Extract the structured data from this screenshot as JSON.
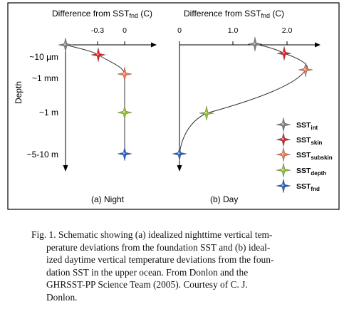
{
  "figure": {
    "depth_label": "Depth",
    "depth_ticks": [
      "~10 µm",
      "~1 mm",
      "~1 m",
      "~5-10 m"
    ],
    "night": {
      "axis_title": {
        "main": "Difference from SST",
        "sub": "fnd",
        "unit": " (C)"
      },
      "x_ticks": [
        "-0.3",
        "0"
      ],
      "panel_label": "(a) Night"
    },
    "day": {
      "axis_title": {
        "main": "Difference from SST",
        "sub": "fnd",
        "unit": " (C)"
      },
      "x_ticks": [
        "0",
        "1.0",
        "2.0"
      ],
      "panel_label": "(b) Day"
    },
    "legend": [
      {
        "main": "SST",
        "sub": "int",
        "color": "#7f7f7f"
      },
      {
        "main": "SST",
        "sub": "skin",
        "color": "#e02020"
      },
      {
        "main": "SST",
        "sub": "subskin",
        "color": "#f07850"
      },
      {
        "main": "SST",
        "sub": "depth",
        "color": "#90c030"
      },
      {
        "main": "SST",
        "sub": "fnd",
        "color": "#2060d0"
      }
    ]
  },
  "caption": {
    "lines": [
      "Fig. 1. Schematic showing (a) idealized nighttime vertical tem-",
      "perature deviations from the foundation SST and (b) ideal-",
      "ized daytime vertical temperature deviations from the foun-",
      "dation SST in the upper ocean. From Donlon and the",
      "GHRSST-PP Science Team (2005). Courtesy of C. J.",
      "Donlon."
    ]
  }
}
